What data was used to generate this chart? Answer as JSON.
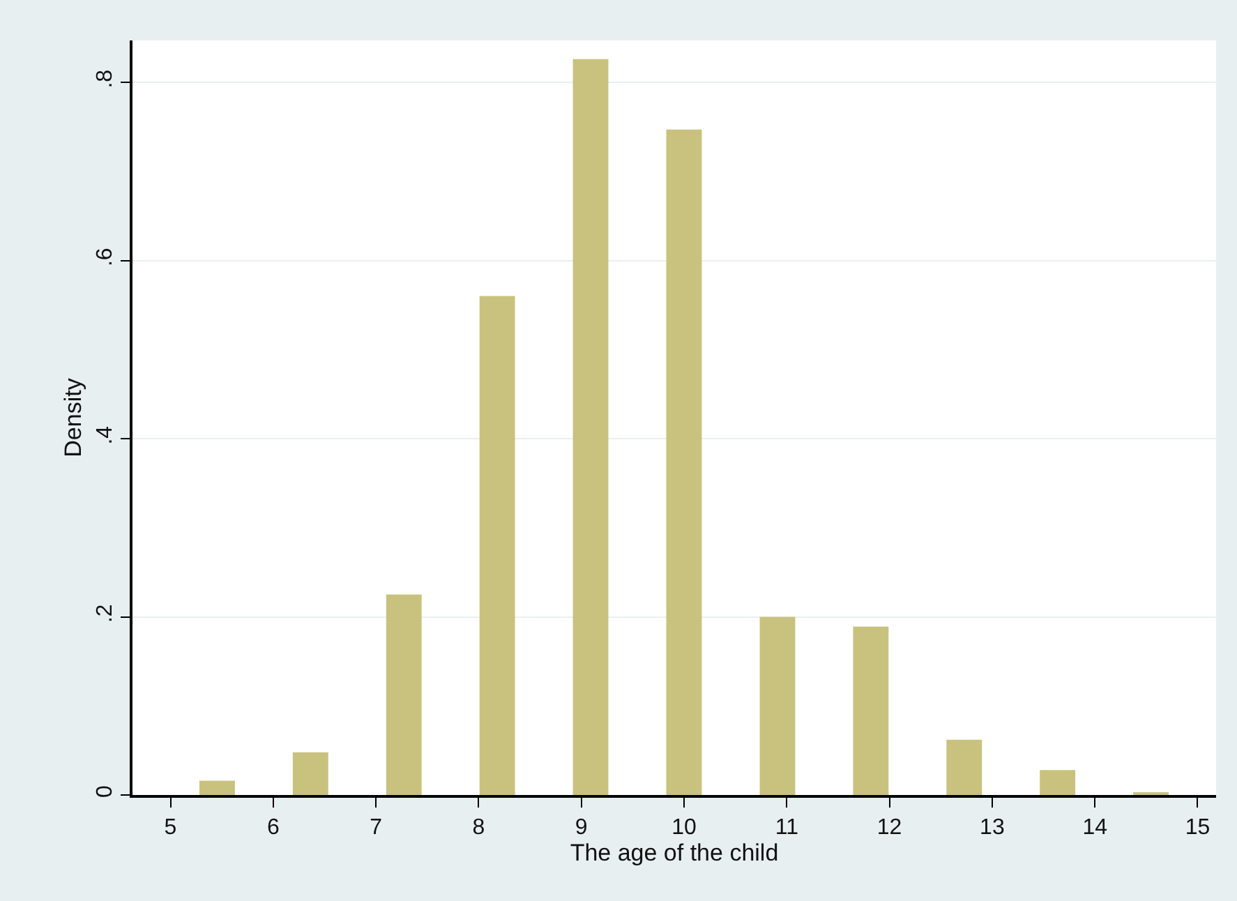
{
  "chart_data": {
    "type": "histogram",
    "xlabel": "The age of the child",
    "ylabel": "Density",
    "bins": [
      5,
      5.909,
      6.818,
      7.727,
      8.636,
      9.545,
      10.455,
      11.364,
      12.273,
      13.182,
      14.091,
      15
    ],
    "values": [
      0.016,
      0.048,
      0.225,
      0.56,
      0.826,
      0.747,
      0.2,
      0.189,
      0.062,
      0.028,
      0.003
    ],
    "color": "#c9c27f",
    "xlim": [
      4.63,
      15.18
    ],
    "xticks": [
      5,
      6,
      7,
      8,
      9,
      10,
      11,
      12,
      13,
      14,
      15
    ],
    "ylim": [
      0,
      0.847
    ],
    "yticks": [
      0,
      {
        "value": 0.2,
        "label": ".2"
      },
      {
        "value": 0.4,
        "label": ".4"
      },
      {
        "value": 0.6,
        "label": ".6"
      },
      {
        "value": 0.8,
        "label": ".8"
      }
    ],
    "grid": "y",
    "legend": false
  }
}
